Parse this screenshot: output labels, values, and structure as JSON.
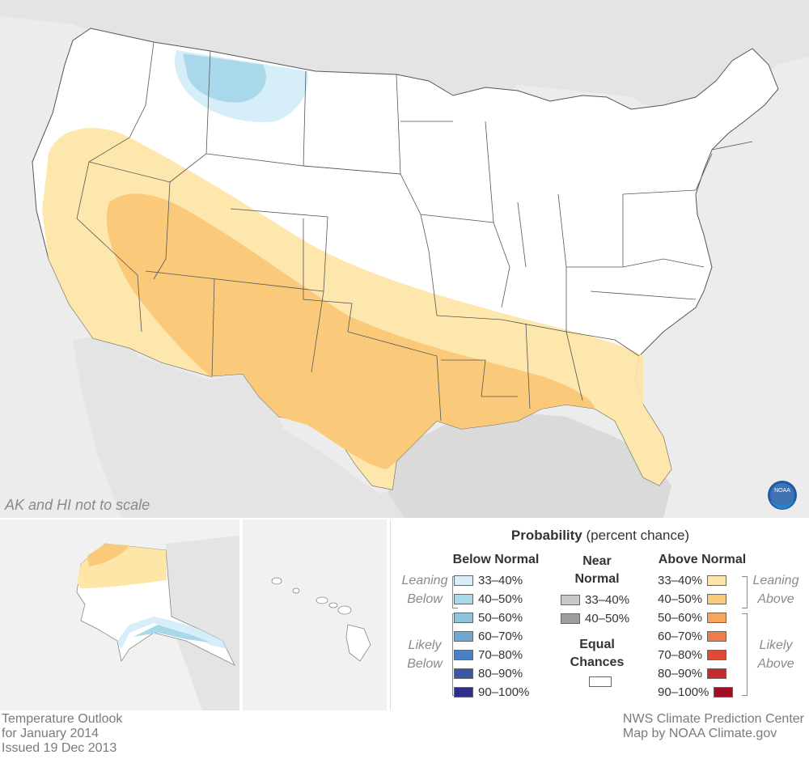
{
  "map": {
    "scale_note": "AK and HI not to scale",
    "logo_text": "NOAA",
    "colors": {
      "background": "#ececec",
      "land": "#ffffff",
      "neighbor_land": "#e4e4e4",
      "water": "#dadada",
      "above_33_40": "#fde6a8",
      "above_40_50": "#fbc97a",
      "below_33_40": "#d6eef7",
      "below_40_50": "#a9d8ea"
    }
  },
  "legend": {
    "title_bold": "Probability",
    "title_rest": "(percent chance)",
    "below_header": "Below Normal",
    "near_header": "Near Normal",
    "above_header": "Above Normal",
    "equal_header": "Equal Chances",
    "leaning_label": "Leaning",
    "likely_label": "Likely",
    "below_word": "Below",
    "above_word": "Above",
    "below_rows": [
      {
        "label": "33–40%",
        "color": "#d6eef7"
      },
      {
        "label": "40–50%",
        "color": "#a9d8ea"
      },
      {
        "label": "50–60%",
        "color": "#8ec5dd"
      },
      {
        "label": "60–70%",
        "color": "#6fa8d4"
      },
      {
        "label": "70–80%",
        "color": "#4a80c4"
      },
      {
        "label": "80–90%",
        "color": "#3a57a6"
      },
      {
        "label": "90–100%",
        "color": "#2b2f8a"
      }
    ],
    "near_rows": [
      {
        "label": "33–40%",
        "color": "#c8c8c8"
      },
      {
        "label": "40–50%",
        "color": "#9e9e9e"
      }
    ],
    "above_rows": [
      {
        "label": "33–40%",
        "color": "#fde6a8"
      },
      {
        "label": "40–50%",
        "color": "#fbc97a"
      },
      {
        "label": "50–60%",
        "color": "#f7a55a"
      },
      {
        "label": "60–70%",
        "color": "#f07a48"
      },
      {
        "label": "70–80%",
        "color": "#e04a35"
      },
      {
        "label": "80–90%",
        "color": "#c62a2a"
      },
      {
        "label": "90–100%",
        "color": "#a10d23"
      }
    ]
  },
  "footer": {
    "left_line1": "Temperature Outlook",
    "left_line2": "for January 2014",
    "left_line3": "Issued 19 Dec 2013",
    "right_line1": "NWS Climate Prediction Center",
    "right_line2": "Map by NOAA Climate.gov"
  }
}
